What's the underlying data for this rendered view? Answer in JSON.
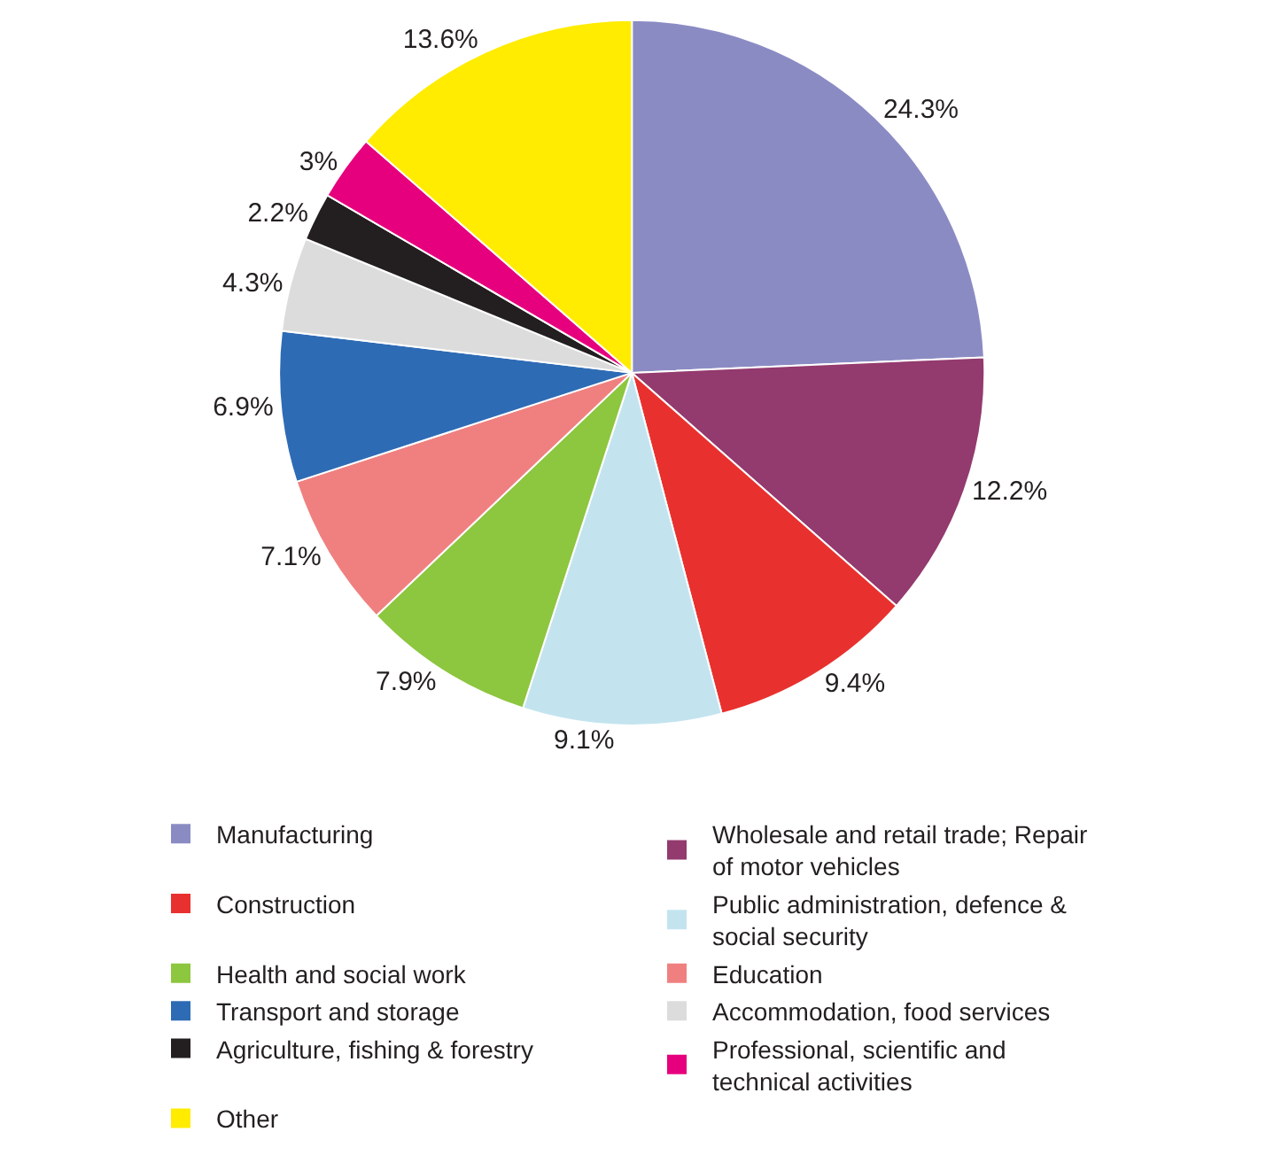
{
  "chart_data": {
    "type": "pie",
    "categories": [
      "Manufacturing",
      "Wholesale and retail trade; Repair of motor vehicles",
      "Construction",
      "Public administration, defence & social security",
      "Health and social work",
      "Education",
      "Transport and storage",
      "Accommodation, food services",
      "Agriculture, fishing & forestry",
      "Professional, scientific and technical activities",
      "Other"
    ],
    "values": [
      24.3,
      12.2,
      9.4,
      9.1,
      7.9,
      7.1,
      6.9,
      4.3,
      2.2,
      3,
      13.6
    ],
    "value_labels": [
      "24.3%",
      "12.2%",
      "9.4%",
      "9.1%",
      "7.9%",
      "7.1%",
      "6.9%",
      "4.3%",
      "2.2%",
      "3%",
      "13.6%"
    ],
    "colors": [
      "#8b8bc4",
      "#933a6e",
      "#e8312e",
      "#c3e4ef",
      "#8dc63f",
      "#f08080",
      "#2e6bb5",
      "#dcdcdc",
      "#231f20",
      "#e6007e",
      "#ffec00"
    ],
    "legend": "bottom"
  }
}
